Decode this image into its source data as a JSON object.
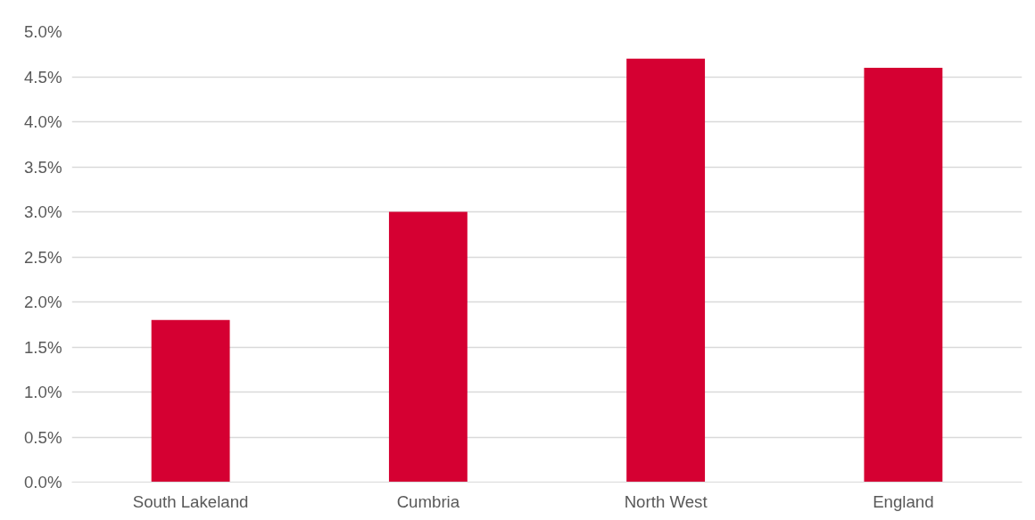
{
  "chart_data": {
    "type": "bar",
    "categories": [
      "South Lakeland",
      "Cumbria",
      "North West",
      "England"
    ],
    "values": [
      1.8,
      3.0,
      4.7,
      4.6
    ],
    "color": "#d50032",
    "ylim": [
      0,
      5
    ],
    "yticks": [
      {
        "value": 0,
        "label": "0.0%"
      },
      {
        "value": 0.5,
        "label": "0.5%"
      },
      {
        "value": 1,
        "label": "1.0%"
      },
      {
        "value": 1.5,
        "label": "1.5%"
      },
      {
        "value": 2,
        "label": "2.0%"
      },
      {
        "value": 2.5,
        "label": "2.5%"
      },
      {
        "value": 3,
        "label": "3.0%"
      },
      {
        "value": 3.5,
        "label": "3.5%"
      },
      {
        "value": 4,
        "label": "4.0%"
      },
      {
        "value": 4.5,
        "label": "4.5%"
      },
      {
        "value": 5,
        "label": "5.0%"
      }
    ],
    "grid": "y"
  }
}
